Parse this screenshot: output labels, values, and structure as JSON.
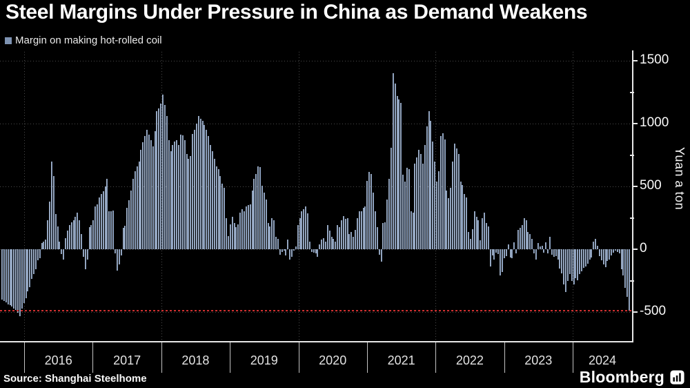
{
  "header": {
    "title": "Steel Margins Under Pressure in China as Demand Weakens"
  },
  "legend": {
    "label": "Margin on making hot-rolled coil",
    "swatch_color": "#7e93b2"
  },
  "axes": {
    "y": {
      "unit_label": "Yuan a ton",
      "major_ticks": [
        1500,
        1000,
        500,
        0,
        -500
      ],
      "minor_ticks": [
        1250,
        750,
        250,
        -250
      ]
    },
    "x": {
      "year_ticks": [
        "2016",
        "2017",
        "2018",
        "2019",
        "2020",
        "2021",
        "2022",
        "2023",
        "2024"
      ]
    }
  },
  "footer": {
    "source": "Source: Shanghai Steelhome",
    "brand": "Bloomberg"
  },
  "colors": {
    "bar": "#7e93b2",
    "reference_line": "#d03030",
    "grid": "#4d4d4d",
    "axis": "#e8e8e8"
  },
  "chart_data": {
    "type": "bar",
    "title": "Steel Margins Under Pressure in China as Demand Weakens",
    "series_name": "Margin on making hot-rolled coil",
    "ylabel": "Yuan a ton",
    "ylim": [
      -750,
      1650
    ],
    "x_start": 2015.7,
    "x_end": 2024.85,
    "x_tick_years": [
      2016,
      2017,
      2018,
      2019,
      2020,
      2021,
      2022,
      2023,
      2024
    ],
    "grid": "dotted",
    "legend_position": "top-left",
    "reference_line": {
      "value": -500,
      "style": "dashed",
      "color": "#d03030"
    },
    "values": [
      -400,
      -410,
      -425,
      -440,
      -445,
      -455,
      -470,
      -485,
      -505,
      -535,
      -470,
      -430,
      -390,
      -335,
      -300,
      -235,
      -200,
      -160,
      -90,
      -70,
      50,
      60,
      75,
      230,
      380,
      700,
      580,
      280,
      180,
      60,
      -40,
      -80,
      90,
      150,
      190,
      215,
      230,
      260,
      290,
      230,
      120,
      -60,
      -160,
      -80,
      175,
      195,
      230,
      340,
      360,
      410,
      440,
      460,
      500,
      560,
      305,
      300,
      310,
      -30,
      -170,
      -120,
      -50,
      170,
      185,
      330,
      390,
      470,
      560,
      620,
      660,
      700,
      790,
      850,
      900,
      950,
      915,
      870,
      820,
      940,
      1100,
      1120,
      1160,
      1230,
      1150,
      1060,
      870,
      780,
      830,
      860,
      870,
      830,
      910,
      905,
      870,
      760,
      720,
      740,
      920,
      950,
      1000,
      1060,
      1040,
      1020,
      990,
      950,
      900,
      830,
      780,
      720,
      660,
      640,
      580,
      520,
      490,
      250,
      105,
      200,
      260,
      210,
      175,
      200,
      290,
      320,
      300,
      340,
      350,
      360,
      470,
      560,
      600,
      660,
      655,
      505,
      450,
      395,
      210,
      180,
      250,
      230,
      100,
      85,
      -45,
      -20,
      -10,
      -50,
      75,
      -80,
      -60,
      -10,
      20,
      195,
      250,
      305,
      320,
      340,
      285,
      60,
      -20,
      -25,
      -30,
      -60,
      40,
      75,
      90,
      60,
      195,
      150,
      100,
      85,
      60,
      195,
      175,
      230,
      265,
      240,
      245,
      120,
      140,
      100,
      155,
      250,
      300,
      305,
      330,
      340,
      545,
      615,
      600,
      450,
      300,
      175,
      -45,
      -100,
      210,
      215,
      395,
      560,
      810,
      1400,
      1320,
      1220,
      1190,
      1165,
      595,
      540,
      650,
      640,
      305,
      290,
      680,
      730,
      790,
      760,
      680,
      830,
      980,
      1100,
      1020,
      860,
      700,
      540,
      620,
      900,
      925,
      875,
      470,
      405,
      490,
      700,
      840,
      800,
      760,
      540,
      510,
      440,
      415,
      140,
      80,
      160,
      300,
      260,
      230,
      70,
      250,
      290,
      210,
      180,
      -135,
      -50,
      -80,
      -25,
      -40,
      -210,
      -180,
      -70,
      -55,
      40,
      -65,
      -70,
      55,
      -30,
      155,
      170,
      190,
      250,
      230,
      140,
      120,
      85,
      -30,
      -80,
      50,
      20,
      30,
      -25,
      55,
      -30,
      100,
      -45,
      -60,
      -55,
      -80,
      -155,
      -190,
      -280,
      -340,
      -250,
      -200,
      -250,
      -280,
      -230,
      -245,
      -200,
      -175,
      -150,
      -135,
      -115,
      -80,
      -65,
      60,
      85,
      30,
      -55,
      -90,
      -120,
      -145,
      -95,
      -80,
      -50,
      -25,
      -10,
      -20,
      -35,
      -160,
      -210,
      -310,
      -380,
      -490
    ]
  }
}
